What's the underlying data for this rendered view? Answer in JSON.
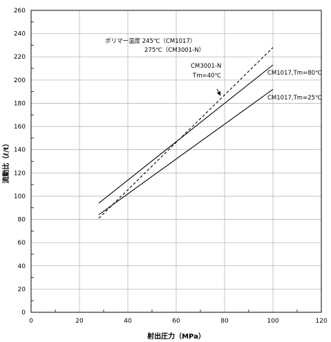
{
  "chart_data": {
    "type": "line",
    "title": "",
    "xlabel": "射出圧力（MPa）",
    "ylabel": "流動比（ℓ/t）",
    "xlim": [
      0,
      120
    ],
    "ylim": [
      0,
      260
    ],
    "x_ticks": [
      "0",
      "20",
      "40",
      "60",
      "80",
      "100",
      "120"
    ],
    "y_ticks": [
      "0",
      "20",
      "40",
      "60",
      "80",
      "100",
      "120",
      "140",
      "160",
      "180",
      "200",
      "220",
      "240",
      "260"
    ],
    "x_minor_step": 10,
    "y_minor_step": 10,
    "grid": true,
    "series": [
      {
        "name": "CM1017,Tm=80℃",
        "style": "solid",
        "x": [
          28,
          100
        ],
        "y": [
          94,
          213
        ]
      },
      {
        "name": "CM1017,Tm=25℃",
        "style": "solid",
        "x": [
          28,
          100
        ],
        "y": [
          84,
          192
        ]
      },
      {
        "name": "CM3001-N Tm=40℃",
        "style": "dashed",
        "x": [
          28,
          100
        ],
        "y": [
          81,
          228
        ]
      }
    ],
    "annotations": {
      "polymer_temp_line1": "ポリマー温度 245℃（CM1017）",
      "polymer_temp_line2": "275℃（CM3001-N）",
      "cm3001_line1": "CM3001-N",
      "cm3001_line2": "Tm=40℃",
      "label_80": "CM1017,Tm=80℃",
      "label_25": "CM1017,Tm=25℃"
    }
  }
}
